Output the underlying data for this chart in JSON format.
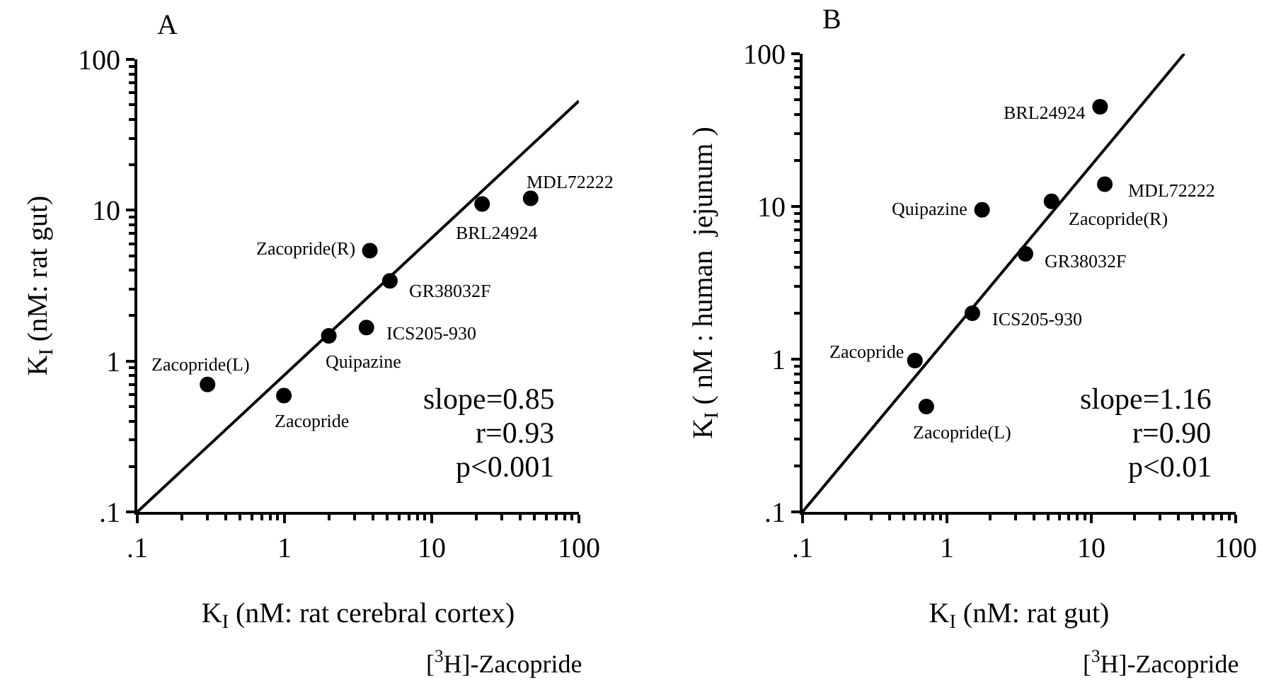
{
  "chart_data": [
    {
      "type": "scatter",
      "title": "A",
      "xlabel": "K$_{I}$ (nM: rat cerebral cortex)",
      "ylabel": "K$_{I}$ (nM: rat gut)",
      "log": "xy",
      "grid": false,
      "xlim": [
        0.1,
        100
      ],
      "ylim": [
        0.1,
        100
      ],
      "xticks": [
        {
          "value": 0.1,
          "label": ".1"
        },
        1,
        10,
        100
      ],
      "yticks": [
        {
          "value": 0.1,
          "label": ".1"
        },
        1,
        10,
        100
      ],
      "series": [
        {
          "marker": "circle",
          "color": "#000000",
          "x": [
            0.3,
            0.99,
            2.0,
            3.6,
            3.8,
            5.2,
            22,
            47
          ],
          "values": [
            0.7,
            0.59,
            1.47,
            1.67,
            5.4,
            3.4,
            11,
            12
          ]
        },
        {
          "type": "line",
          "color": "#000000",
          "line_style": "solid",
          "x": [
            0.1,
            100
          ],
          "values": [
            0.1,
            53
          ]
        }
      ],
      "annotations": [
        {
          "text": "Zacopride(L)",
          "x": 0.3,
          "y": 0.7
        },
        {
          "text": "Zacopride",
          "x": 0.99,
          "y": 0.59
        },
        {
          "text": "Quipazine",
          "x": 2.0,
          "y": 1.47
        },
        {
          "text": "ICS205-930",
          "x": 3.6,
          "y": 1.67
        },
        {
          "text": "Zacopride(R)",
          "x": 3.8,
          "y": 5.4
        },
        {
          "text": "GR38032F",
          "x": 5.2,
          "y": 3.4
        },
        {
          "text": "BRL24924",
          "x": 22,
          "y": 11
        },
        {
          "text": "MDL72222",
          "x": 47,
          "y": 12
        },
        "slope=0.85",
        "r=0.93",
        "p<0.001",
        "[$^{3}$H]-Zacopride"
      ]
    },
    {
      "type": "scatter",
      "title": "B",
      "xlabel": "K$_{I}$ (nM: rat gut)",
      "ylabel": "K$_{I}$ ( nM : human  jejunum )",
      "log": "xy",
      "grid": false,
      "xlim": [
        0.1,
        100
      ],
      "ylim": [
        0.1,
        100
      ],
      "xticks": [
        {
          "value": 0.1,
          "label": ".1"
        },
        1,
        10,
        100
      ],
      "yticks": [
        {
          "value": 0.1,
          "label": ".1"
        },
        1,
        10,
        100
      ],
      "series": [
        {
          "marker": "circle",
          "color": "#000000",
          "x": [
            0.6,
            0.72,
            1.5,
            1.75,
            3.5,
            5.3,
            11.5,
            12.4
          ],
          "values": [
            0.98,
            0.49,
            2.0,
            9.5,
            4.9,
            10.8,
            45,
            14
          ]
        },
        {
          "type": "line",
          "color": "#000000",
          "line_style": "solid",
          "x": [
            0.1,
            44
          ],
          "values": [
            0.1,
            100
          ]
        }
      ],
      "annotations": [
        {
          "text": "Zacopride",
          "x": 0.6,
          "y": 0.98
        },
        {
          "text": "Zacopride(L)",
          "x": 0.72,
          "y": 0.49
        },
        {
          "text": "ICS205-930",
          "x": 1.5,
          "y": 2.0
        },
        {
          "text": "Quipazine",
          "x": 1.75,
          "y": 9.5
        },
        {
          "text": "GR38032F",
          "x": 3.5,
          "y": 4.9
        },
        {
          "text": "Zacopride(R)",
          "x": 5.3,
          "y": 10.8
        },
        {
          "text": "BRL24924",
          "x": 11.5,
          "y": 45
        },
        {
          "text": "MDL72222",
          "x": 12.4,
          "y": 14
        },
        "slope=1.16",
        "r=0.90",
        "p<0.01",
        "[$^{3}$H]-Zacopride"
      ]
    }
  ]
}
